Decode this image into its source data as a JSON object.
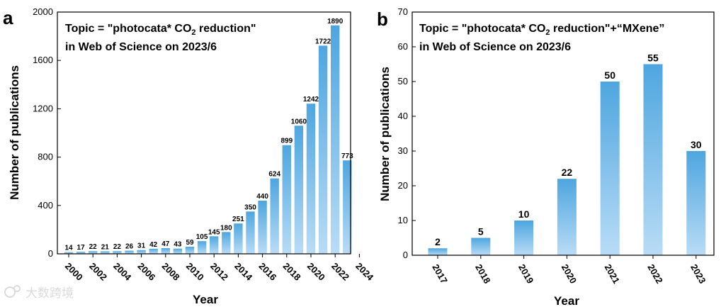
{
  "colors": {
    "bar_top": "#4ea6df",
    "bar_bottom": "#b9dcf6",
    "axis": "#000000"
  },
  "watermark": "大数跨境",
  "chart_data": [
    {
      "type": "bar",
      "panel": "a",
      "annotation_line1_pre": "Topic = \"photocata* CO",
      "annotation_sub": "2",
      "annotation_line1_post": " reduction\"",
      "annotation_line2": "in Web of Science on 2023/6",
      "xlabel": "Year",
      "ylabel": "Number of publications",
      "ylim": [
        0,
        2000
      ],
      "yticks": [
        "0",
        "400",
        "800",
        "1200",
        "1600",
        "2000"
      ],
      "xticks": [
        "2000",
        "2002",
        "2004",
        "2006",
        "2008",
        "2010",
        "2012",
        "2014",
        "2016",
        "2018",
        "2020",
        "2022",
        "2024"
      ],
      "categories": [
        "2000",
        "2001",
        "2002",
        "2003",
        "2004",
        "2005",
        "2006",
        "2007",
        "2008",
        "2009",
        "2010",
        "2011",
        "2012",
        "2013",
        "2014",
        "2015",
        "2016",
        "2017",
        "2018",
        "2019",
        "2020",
        "2021",
        "2022",
        "2023"
      ],
      "values": [
        14,
        17,
        22,
        21,
        22,
        26,
        31,
        42,
        47,
        43,
        59,
        105,
        145,
        180,
        251,
        350,
        440,
        624,
        899,
        1060,
        1242,
        1722,
        1890,
        773
      ],
      "labels": [
        "14",
        "17",
        "22",
        "21",
        "22",
        "26",
        "31",
        "42",
        "47",
        "43",
        "59",
        "105",
        "145",
        "180",
        "251",
        "350",
        "440",
        "624",
        "899",
        "1060",
        "1242",
        "1722",
        "1890",
        "773"
      ]
    },
    {
      "type": "bar",
      "panel": "b",
      "annotation_line1_pre": "Topic = \"photocata* CO",
      "annotation_sub": "2",
      "annotation_line1_post": " reduction\"+“MXene”",
      "annotation_line2": "in Web of Science on 2023/6",
      "xlabel": "Year",
      "ylabel": "Number of publications",
      "ylim": [
        0,
        70
      ],
      "yticks": [
        "0",
        "10",
        "20",
        "30",
        "40",
        "50",
        "60",
        "70"
      ],
      "categories": [
        "2017",
        "2018",
        "2019",
        "2020",
        "2021",
        "2022",
        "2023"
      ],
      "values": [
        2,
        5,
        10,
        22,
        50,
        55,
        30
      ],
      "labels": [
        "2",
        "5",
        "10",
        "22",
        "50",
        "55",
        "30"
      ]
    }
  ]
}
